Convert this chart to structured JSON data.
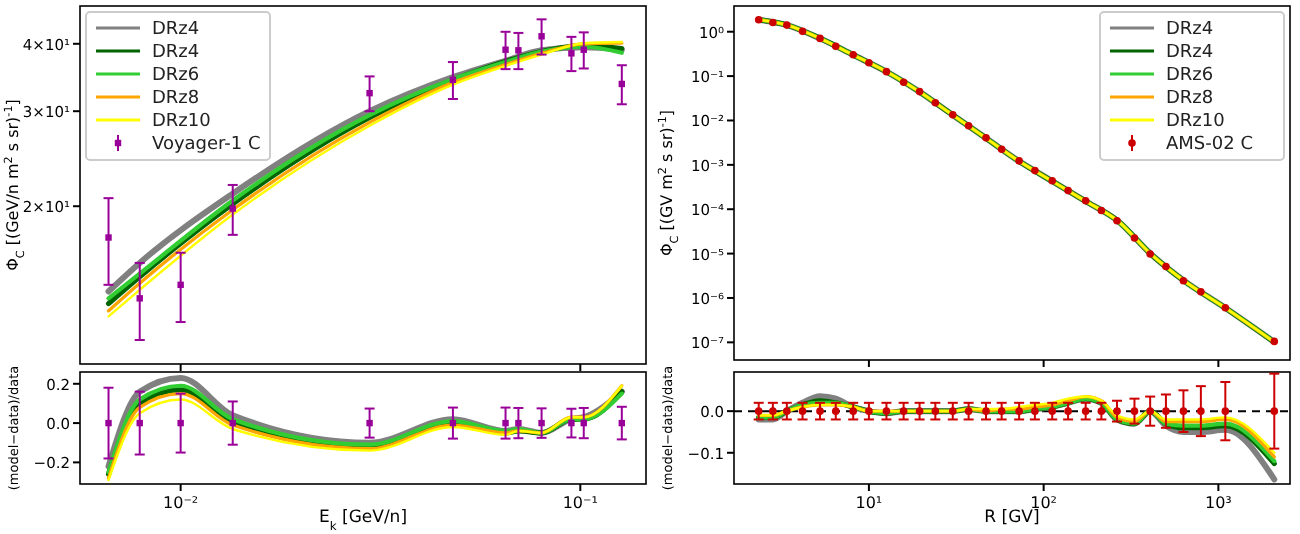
{
  "chart_data": [
    {
      "type": "line",
      "ylabel": "Φ$_{C}$ [(GeV/n m$^{2}$ s sr)$^{-1}$]",
      "log": "xy",
      "legend": "top left",
      "tick_labels": "y",
      "xlim": [
        0.0056,
        0.146
      ],
      "ylim": [
        10.2,
        47
      ],
      "xticks": [
        {
          "value": 0.01,
          "label": null
        },
        {
          "value": 0.1,
          "label": null
        }
      ],
      "yticks": [
        {
          "value": 20,
          "label": "2×10¹"
        },
        {
          "value": 30,
          "label": "3×10¹"
        },
        {
          "value": 40,
          "label": "4×10¹"
        }
      ],
      "series": [
        {
          "name": "DRz4",
          "color": "#808080",
          "x": [
            0.0066,
            0.0079,
            0.0135,
            0.0297,
            0.048,
            0.065,
            0.08,
            0.102,
            0.127
          ],
          "values": [
            13.9,
            15.7,
            21.1,
            30.0,
            34.7,
            37.2,
            38.9,
            39.4,
            39.0
          ]
        },
        {
          "name": "DRz4",
          "color": "#006400",
          "x": [
            0.0066,
            0.0079,
            0.0135,
            0.0297,
            0.048,
            0.065,
            0.08,
            0.102,
            0.127
          ],
          "values": [
            13.2,
            14.8,
            20.2,
            29.2,
            34.3,
            37.1,
            38.7,
            39.7,
            39.2
          ]
        },
        {
          "name": "DRz6",
          "color": "#32cd32",
          "x": [
            0.0066,
            0.0079,
            0.0135,
            0.0297,
            0.048,
            0.065,
            0.08,
            0.102,
            0.127
          ],
          "values": [
            13.5,
            15.0,
            20.5,
            29.5,
            34.4,
            37.0,
            38.7,
            39.5,
            38.5
          ]
        },
        {
          "name": "DRz8",
          "color": "#ffa500",
          "x": [
            0.0066,
            0.0079,
            0.0135,
            0.0297,
            0.048,
            0.065,
            0.08,
            0.102,
            0.127
          ],
          "values": [
            12.8,
            14.4,
            19.7,
            28.6,
            33.9,
            36.6,
            38.4,
            40.0,
            40.1
          ]
        },
        {
          "name": "DRz10",
          "color": "#ffff00",
          "x": [
            0.0066,
            0.0079,
            0.0135,
            0.0297,
            0.048,
            0.065,
            0.08,
            0.102,
            0.127
          ],
          "values": [
            12.5,
            14.0,
            19.3,
            28.2,
            33.6,
            36.4,
            38.2,
            40.1,
            40.3
          ]
        },
        {
          "name": "Voyager-1 C",
          "type": "scatter",
          "marker": "square",
          "color": "#990099",
          "x": [
            0.0066,
            0.0079,
            0.01,
            0.0135,
            0.0297,
            0.048,
            0.065,
            0.07,
            0.08,
            0.095,
            0.102,
            0.127
          ],
          "values": [
            17.5,
            13.5,
            14.3,
            19.8,
            32.4,
            34.3,
            39.0,
            38.9,
            41.3,
            38.4,
            39.0,
            33.7
          ],
          "errors": [
            3.2,
            2.2,
            2.1,
            2.1,
            2.4,
            2.7,
            3.1,
            3.0,
            3.1,
            2.8,
            3.0,
            2.8
          ]
        }
      ]
    },
    {
      "type": "line",
      "xlabel": "E$_{k}$ [GeV/n]",
      "ylabel": "(model−data)/data",
      "log": "x",
      "xlim": [
        0.0056,
        0.146
      ],
      "ylim": [
        -0.31,
        0.26
      ],
      "xticks": [
        {
          "value": 0.01,
          "label": "10⁻²"
        },
        {
          "value": 0.1,
          "label": "10⁻¹"
        }
      ],
      "yticks": [
        {
          "value": -0.2,
          "label": "−0.2"
        },
        {
          "value": 0,
          "label": "0.0"
        },
        {
          "value": 0.2,
          "label": "0.2"
        }
      ],
      "series": [
        {
          "color": "#808080",
          "x": [
            0.0066,
            0.0079,
            0.01,
            0.0135,
            0.0297,
            0.048,
            0.065,
            0.07,
            0.08,
            0.095,
            0.102,
            0.127
          ],
          "values": [
            -0.22,
            0.16,
            0.23,
            0.04,
            -0.1,
            0.02,
            -0.04,
            -0.03,
            -0.05,
            0.02,
            0.03,
            0.16
          ]
        },
        {
          "color": "#006400",
          "x": [
            0.0066,
            0.0079,
            0.01,
            0.0135,
            0.0297,
            0.048,
            0.065,
            0.07,
            0.08,
            0.095,
            0.102,
            0.127
          ],
          "values": [
            -0.26,
            0.1,
            0.17,
            0.01,
            -0.12,
            0,
            -0.05,
            -0.04,
            -0.05,
            0.02,
            0.02,
            0.16
          ]
        },
        {
          "color": "#32cd32",
          "x": [
            0.0066,
            0.0079,
            0.01,
            0.0135,
            0.0297,
            0.048,
            0.065,
            0.07,
            0.08,
            0.095,
            0.102,
            0.127
          ],
          "values": [
            -0.25,
            0.12,
            0.19,
            0.02,
            -0.11,
            0.01,
            -0.04,
            -0.03,
            -0.05,
            0.02,
            0.02,
            0.15
          ]
        },
        {
          "color": "#ffa500",
          "x": [
            0.0066,
            0.0079,
            0.01,
            0.0135,
            0.0297,
            0.048,
            0.065,
            0.07,
            0.08,
            0.095,
            0.102,
            0.127
          ],
          "values": [
            -0.28,
            0.08,
            0.15,
            -0.01,
            -0.13,
            -0.01,
            -0.05,
            -0.04,
            -0.05,
            0.03,
            0.03,
            0.19
          ]
        },
        {
          "color": "#ffff00",
          "x": [
            0.0066,
            0.0079,
            0.01,
            0.0135,
            0.0297,
            0.048,
            0.065,
            0.07,
            0.08,
            0.095,
            0.102,
            0.127
          ],
          "values": [
            -0.29,
            0.05,
            0.12,
            -0.03,
            -0.14,
            -0.02,
            -0.06,
            -0.04,
            -0.05,
            0.03,
            0.03,
            0.19
          ]
        },
        {
          "type": "scatter",
          "marker": "square",
          "color": "#990099",
          "x": [
            0.0066,
            0.0079,
            0.01,
            0.0135,
            0.0297,
            0.048,
            0.065,
            0.07,
            0.08,
            0.095,
            0.102,
            0.127
          ],
          "values": [
            0,
            0,
            0,
            0,
            0,
            0,
            0,
            0,
            0,
            0,
            0,
            0
          ],
          "errors": [
            0.18,
            0.16,
            0.15,
            0.11,
            0.074,
            0.079,
            0.079,
            0.077,
            0.075,
            0.073,
            0.077,
            0.083
          ]
        }
      ]
    },
    {
      "type": "line",
      "ylabel": "Φ$_{C}$ [(GV m$^{2}$ s sr)$^{-1}$]",
      "log": "xy",
      "legend": "top right",
      "tick_labels": "y",
      "xlim": [
        1.69,
        2570
      ],
      "ylim": [
        4e-08,
        3.8
      ],
      "xticks": [
        {
          "value": 10,
          "label": null
        },
        {
          "value": 100,
          "label": null
        },
        {
          "value": 1000,
          "label": null
        }
      ],
      "yticks": [
        {
          "value": 1,
          "label": "10⁰"
        },
        {
          "value": 0.1,
          "label": "10⁻¹"
        },
        {
          "value": 0.01,
          "label": "10⁻²"
        },
        {
          "value": 0.001,
          "label": "10⁻³"
        },
        {
          "value": 0.0001,
          "label": "10⁻⁴"
        },
        {
          "value": 1e-05,
          "label": "10⁻⁵"
        },
        {
          "value": 1e-06,
          "label": "10⁻⁶"
        },
        {
          "value": 1e-07,
          "label": "10⁻⁷"
        }
      ],
      "series": [
        {
          "name": "DRz4",
          "color": "#808080",
          "x": [
            2.36,
            3.4,
            5.25,
            8.11,
            12.6,
            19.4,
            30,
            46.5,
            71.8,
            111,
            172,
            265,
            411,
            635,
            1072,
            2065
          ],
          "values": [
            1.86,
            1.41,
            0.708,
            0.302,
            0.126,
            0.0447,
            0.0135,
            0.00407,
            0.00123,
            0.000437,
            0.000155,
            5.5e-05,
            9.77e-06,
            2.45e-06,
            6.31e-07,
            1.05e-07
          ]
        },
        {
          "name": "DRz4",
          "color": "#006400",
          "x": [
            2.36,
            3.4,
            5.25,
            8.11,
            12.6,
            19.4,
            30,
            46.5,
            71.8,
            111,
            172,
            265,
            411,
            635,
            1072,
            2065
          ],
          "values": [
            1.86,
            1.41,
            0.708,
            0.302,
            0.126,
            0.0447,
            0.0135,
            0.00407,
            0.00123,
            0.000437,
            0.000155,
            5.5e-05,
            9.77e-06,
            2.45e-06,
            6.31e-07,
            1.05e-07
          ]
        },
        {
          "name": "DRz6",
          "color": "#32cd32",
          "x": [
            2.36,
            3.4,
            5.25,
            8.11,
            12.6,
            19.4,
            30,
            46.5,
            71.8,
            111,
            172,
            265,
            411,
            635,
            1072,
            2065
          ],
          "values": [
            1.86,
            1.41,
            0.708,
            0.302,
            0.126,
            0.0447,
            0.0135,
            0.00407,
            0.00123,
            0.000437,
            0.000155,
            5.5e-05,
            9.77e-06,
            2.45e-06,
            6.31e-07,
            1.05e-07
          ]
        },
        {
          "name": "DRz8",
          "color": "#ffa500",
          "x": [
            2.36,
            3.4,
            5.25,
            8.11,
            12.6,
            19.4,
            30,
            46.5,
            71.8,
            111,
            172,
            265,
            411,
            635,
            1072,
            2065
          ],
          "values": [
            1.86,
            1.41,
            0.708,
            0.302,
            0.126,
            0.0447,
            0.0135,
            0.00407,
            0.00123,
            0.000437,
            0.000155,
            5.5e-05,
            9.77e-06,
            2.45e-06,
            6.31e-07,
            1.05e-07
          ]
        },
        {
          "name": "DRz10",
          "color": "#ffff00",
          "x": [
            2.36,
            3.4,
            5.25,
            8.11,
            12.6,
            19.4,
            30,
            46.5,
            71.8,
            111,
            172,
            265,
            411,
            635,
            1072,
            2065
          ],
          "values": [
            1.86,
            1.41,
            0.708,
            0.302,
            0.126,
            0.0447,
            0.0135,
            0.00407,
            0.00123,
            0.000437,
            0.000155,
            5.5e-05,
            9.77e-06,
            2.45e-06,
            6.31e-07,
            1.05e-07
          ]
        },
        {
          "name": "AMS-02 C",
          "type": "scatter",
          "marker": "circle",
          "color": "#cc0000",
          "x": [
            2.34,
            2.82,
            3.39,
            4.17,
            5.25,
            6.46,
            8.13,
            10,
            12.6,
            15.8,
            19.5,
            24,
            30.2,
            37.2,
            46.8,
            57.5,
            72.4,
            89.1,
            112,
            138,
            174,
            214,
            263,
            331,
            407,
            501,
            631,
            794,
            1096,
            2089
          ],
          "values": [
            1.86,
            1.62,
            1.41,
            1.02,
            0.708,
            0.468,
            0.302,
            0.2,
            0.126,
            0.0724,
            0.0447,
            0.0251,
            0.0135,
            0.00759,
            0.00407,
            0.00224,
            0.00123,
            0.000741,
            0.000437,
            0.000263,
            0.000155,
            9.33e-05,
            5.5e-05,
            2.24e-05,
            9.77e-06,
            5.13e-06,
            2.45e-06,
            1.38e-06,
            6.03e-07,
            1.05e-07
          ]
        }
      ]
    },
    {
      "type": "line",
      "xlabel": "R [GV]",
      "ylabel": "(model−data)/data",
      "log": "x",
      "xlim": [
        1.69,
        2570
      ],
      "ylim": [
        -0.175,
        0.094
      ],
      "xticks": [
        {
          "value": 10,
          "label": "10¹"
        },
        {
          "value": 100,
          "label": "10²"
        },
        {
          "value": 1000,
          "label": "10³"
        }
      ],
      "yticks": [
        {
          "value": -0.1,
          "label": "−0.1"
        },
        {
          "value": 0,
          "label": "0.0"
        }
      ],
      "ref_lines": [
        {
          "axis": "y",
          "value": 0,
          "color": "#000000",
          "line_style": "dashed"
        }
      ],
      "series": [
        {
          "color": "#808080",
          "x": [
            2.34,
            2.82,
            3.39,
            4.17,
            5.25,
            6.46,
            8.13,
            10,
            12.6,
            15.8,
            19.5,
            24,
            30.2,
            37.2,
            46.8,
            57.5,
            72.4,
            89.1,
            112,
            138,
            174,
            214,
            263,
            331,
            407,
            501,
            631,
            794,
            1096,
            2089
          ],
          "values": [
            -0.02,
            -0.02,
            0,
            0.02,
            0.036,
            0.03,
            0.01,
            0,
            -0.005,
            0,
            0,
            0,
            0,
            0.005,
            0,
            0,
            0,
            0.005,
            0.01,
            0.02,
            0.03,
            0.02,
            -0.02,
            -0.03,
            0,
            -0.035,
            -0.05,
            -0.05,
            -0.045,
            -0.164
          ]
        },
        {
          "color": "#006400",
          "x": [
            2.34,
            2.82,
            3.39,
            4.17,
            5.25,
            6.46,
            8.13,
            10,
            12.6,
            15.8,
            19.5,
            24,
            30.2,
            37.2,
            46.8,
            57.5,
            72.4,
            89.1,
            112,
            138,
            174,
            214,
            263,
            331,
            407,
            501,
            631,
            794,
            1096,
            2089
          ],
          "values": [
            -0.015,
            -0.015,
            0,
            0.015,
            0.025,
            0.02,
            0.01,
            0,
            -0.005,
            0,
            0,
            0,
            0,
            0.005,
            0,
            0,
            0,
            0.005,
            0.01,
            0.02,
            0.03,
            0.02,
            -0.02,
            -0.03,
            0,
            -0.03,
            -0.04,
            -0.04,
            -0.035,
            -0.126
          ]
        },
        {
          "color": "#32cd32",
          "x": [
            2.34,
            2.82,
            3.39,
            4.17,
            5.25,
            6.46,
            8.13,
            10,
            12.6,
            15.8,
            19.5,
            24,
            30.2,
            37.2,
            46.8,
            57.5,
            72.4,
            89.1,
            112,
            138,
            174,
            214,
            263,
            331,
            407,
            501,
            631,
            794,
            1096,
            2089
          ],
          "values": [
            -0.015,
            -0.015,
            0,
            0.015,
            0.02,
            0.02,
            0.01,
            0,
            -0.005,
            0,
            0,
            0,
            0,
            0.005,
            0,
            0,
            0,
            0.005,
            0.01,
            0.02,
            0.03,
            0.02,
            -0.02,
            -0.03,
            0,
            -0.03,
            -0.035,
            -0.035,
            -0.03,
            -0.12
          ]
        },
        {
          "color": "#ffa500",
          "x": [
            2.34,
            2.82,
            3.39,
            4.17,
            5.25,
            6.46,
            8.13,
            10,
            12.6,
            15.8,
            19.5,
            24,
            30.2,
            37.2,
            46.8,
            57.5,
            72.4,
            89.1,
            112,
            138,
            174,
            214,
            263,
            331,
            407,
            501,
            631,
            794,
            1096,
            2089
          ],
          "values": [
            -0.01,
            -0.01,
            0,
            0.01,
            0.015,
            0.015,
            0.01,
            0,
            0,
            0,
            0,
            0,
            0,
            0.005,
            0,
            0.005,
            0.005,
            0.01,
            0.015,
            0.025,
            0.035,
            0.025,
            -0.015,
            -0.025,
            0,
            -0.025,
            -0.025,
            -0.025,
            -0.02,
            -0.11
          ]
        },
        {
          "color": "#ffff00",
          "x": [
            2.34,
            2.82,
            3.39,
            4.17,
            5.25,
            6.46,
            8.13,
            10,
            12.6,
            15.8,
            19.5,
            24,
            30.2,
            37.2,
            46.8,
            57.5,
            72.4,
            89.1,
            112,
            138,
            174,
            214,
            263,
            331,
            407,
            501,
            631,
            794,
            1096,
            2089
          ],
          "values": [
            -0.01,
            -0.01,
            0,
            0.01,
            0.015,
            0.015,
            0.01,
            0,
            0,
            0,
            0,
            0,
            0,
            0.005,
            0.005,
            0.005,
            0.01,
            0.015,
            0.02,
            0.03,
            0.035,
            0.025,
            -0.01,
            -0.02,
            0,
            -0.02,
            -0.02,
            -0.02,
            -0.015,
            -0.1
          ]
        },
        {
          "type": "scatter",
          "marker": "circle",
          "color": "#cc0000",
          "x": [
            2.34,
            2.82,
            3.39,
            4.17,
            5.25,
            6.46,
            8.13,
            10,
            12.6,
            15.8,
            19.5,
            24,
            30.2,
            37.2,
            46.8,
            57.5,
            72.4,
            89.1,
            112,
            138,
            174,
            214,
            263,
            331,
            407,
            501,
            631,
            794,
            1096,
            2089
          ],
          "values": [
            0,
            0,
            0,
            0,
            0,
            0,
            0,
            0,
            0,
            0,
            0,
            0,
            0,
            0,
            0,
            0,
            0,
            0,
            0,
            0,
            0,
            0,
            0,
            0,
            0,
            0,
            0,
            0,
            0,
            0
          ],
          "errors": [
            0.02,
            0.02,
            0.02,
            0.02,
            0.02,
            0.02,
            0.02,
            0.02,
            0.02,
            0.02,
            0.02,
            0.02,
            0.02,
            0.02,
            0.02,
            0.02,
            0.02,
            0.02,
            0.02,
            0.02,
            0.02,
            0.02,
            0.025,
            0.03,
            0.035,
            0.04,
            0.05,
            0.06,
            0.07,
            0.09
          ]
        }
      ]
    }
  ]
}
